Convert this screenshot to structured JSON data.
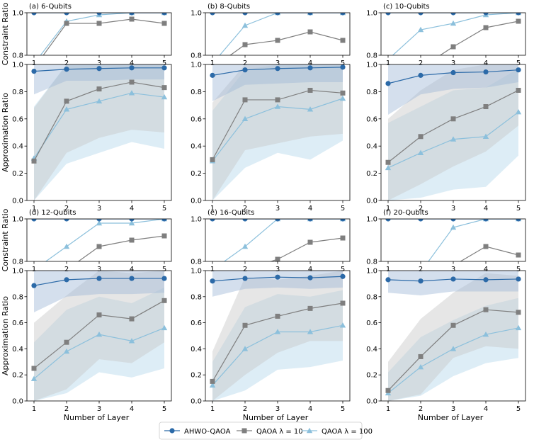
{
  "colors": {
    "ahwo": "#2c6aa8",
    "qaoa10": "#7f7f7f",
    "qaoa100": "#8cc0dc",
    "ahwo_band": "#9fb8d6",
    "qaoa10_band": "#c8c8c8",
    "qaoa100_band": "#b3d6ea"
  },
  "labels": {
    "constraint_ylabel": "Constraint Ratio",
    "approx_ylabel": "Approximation Ratio",
    "xlabel": "Number of Layer"
  },
  "legend": {
    "ahwo": "AHWO-QAOA",
    "qaoa10": "QAOA λ = 10",
    "qaoa100": "QAOA λ = 100"
  },
  "chart_data": {
    "type": "line",
    "x": [
      1,
      2,
      3,
      4,
      5
    ],
    "xticks": [
      "1",
      "2",
      "3",
      "4",
      "5"
    ],
    "constraint_ylim": [
      0.8,
      1.0
    ],
    "constraint_yticks": [
      "0.8",
      "1.0"
    ],
    "approx_ylim": [
      0.0,
      1.0
    ],
    "approx_yticks": [
      "0.0",
      "0.2",
      "0.4",
      "0.6",
      "0.8",
      "1.0"
    ],
    "panels": [
      {
        "title": "(a)  6-Qubits",
        "constraint": {
          "ahwo": [
            1.0,
            1.0,
            1.0,
            1.0,
            1.0
          ],
          "qaoa10": [
            0.74,
            0.95,
            0.95,
            0.97,
            0.95
          ],
          "qaoa100": [
            0.76,
            0.96,
            0.99,
            1.0,
            1.0
          ]
        },
        "approx": {
          "ahwo": [
            0.95,
            0.965,
            0.97,
            0.975,
            0.975
          ],
          "ahwo_band": [
            [
              0.78,
              1.0
            ],
            [
              0.88,
              1.0
            ],
            [
              0.88,
              1.0
            ],
            [
              0.89,
              1.0
            ],
            [
              0.89,
              1.0
            ]
          ],
          "qaoa10": [
            0.29,
            0.73,
            0.82,
            0.87,
            0.83
          ],
          "qaoa10_band": [
            [
              0.0,
              0.68
            ],
            [
              0.35,
              1.0
            ],
            [
              0.46,
              1.0
            ],
            [
              0.52,
              1.0
            ],
            [
              0.5,
              1.0
            ]
          ],
          "qaoa100": [
            0.31,
            0.67,
            0.73,
            0.79,
            0.76
          ],
          "qaoa100_band": [
            [
              0.0,
              0.69
            ],
            [
              0.27,
              1.0
            ],
            [
              0.35,
              1.0
            ],
            [
              0.43,
              1.0
            ],
            [
              0.38,
              1.0
            ]
          ]
        }
      },
      {
        "title": "(b)  8-Qubits",
        "constraint": {
          "ahwo": [
            1.0,
            1.0,
            1.0,
            1.0,
            1.0
          ],
          "qaoa10": [
            0.74,
            0.85,
            0.87,
            0.91,
            0.87
          ],
          "qaoa100": [
            0.76,
            0.94,
            1.0,
            1.0,
            1.0
          ]
        },
        "approx": {
          "ahwo": [
            0.92,
            0.96,
            0.97,
            0.975,
            0.98
          ],
          "ahwo_band": [
            [
              0.73,
              1.0
            ],
            [
              0.85,
              1.0
            ],
            [
              0.86,
              1.0
            ],
            [
              0.87,
              1.0
            ],
            [
              0.87,
              1.0
            ]
          ],
          "qaoa10": [
            0.3,
            0.74,
            0.74,
            0.81,
            0.79
          ],
          "qaoa10_band": [
            [
              0.0,
              0.72
            ],
            [
              0.37,
              1.0
            ],
            [
              0.42,
              1.0
            ],
            [
              0.47,
              1.0
            ],
            [
              0.49,
              1.0
            ]
          ],
          "qaoa100": [
            0.29,
            0.6,
            0.69,
            0.67,
            0.75
          ],
          "qaoa100_band": [
            [
              0.0,
              0.66
            ],
            [
              0.24,
              0.96
            ],
            [
              0.35,
              1.0
            ],
            [
              0.3,
              1.0
            ],
            [
              0.44,
              1.0
            ]
          ]
        }
      },
      {
        "title": "(c)  10-Qubits",
        "constraint": {
          "ahwo": [
            1.0,
            1.0,
            1.0,
            1.0,
            1.0
          ],
          "qaoa10": [
            0.7,
            0.74,
            0.84,
            0.93,
            0.96
          ],
          "qaoa100": [
            0.78,
            0.92,
            0.95,
            0.99,
            1.0
          ]
        },
        "approx": {
          "ahwo": [
            0.86,
            0.92,
            0.94,
            0.945,
            0.96
          ],
          "ahwo_band": [
            [
              0.63,
              1.0
            ],
            [
              0.78,
              1.0
            ],
            [
              0.82,
              1.0
            ],
            [
              0.83,
              1.0
            ],
            [
              0.87,
              1.0
            ]
          ],
          "qaoa10": [
            0.28,
            0.47,
            0.6,
            0.69,
            0.81
          ],
          "qaoa10_band": [
            [
              0.0,
              0.6
            ],
            [
              0.12,
              0.81
            ],
            [
              0.25,
              0.96
            ],
            [
              0.36,
              1.0
            ],
            [
              0.55,
              1.0
            ]
          ],
          "qaoa100": [
            0.24,
            0.35,
            0.45,
            0.47,
            0.65
          ],
          "qaoa100_band": [
            [
              0.0,
              0.57
            ],
            [
              0.02,
              0.69
            ],
            [
              0.08,
              0.81
            ],
            [
              0.1,
              0.83
            ],
            [
              0.33,
              0.97
            ]
          ]
        }
      },
      {
        "title": "(d)  12-Qubits",
        "constraint": {
          "ahwo": [
            1.0,
            1.0,
            1.0,
            1.0,
            1.0
          ],
          "qaoa10": [
            0.72,
            0.76,
            0.87,
            0.9,
            0.92
          ],
          "qaoa100": [
            0.76,
            0.87,
            0.98,
            0.98,
            1.0
          ]
        },
        "approx": {
          "ahwo": [
            0.885,
            0.93,
            0.94,
            0.94,
            0.94
          ],
          "ahwo_band": [
            [
              0.68,
              1.0
            ],
            [
              0.8,
              1.0
            ],
            [
              0.82,
              1.0
            ],
            [
              0.82,
              1.0
            ],
            [
              0.83,
              1.0
            ]
          ],
          "qaoa10": [
            0.25,
            0.45,
            0.66,
            0.63,
            0.77
          ],
          "qaoa10_band": [
            [
              0.0,
              0.6
            ],
            [
              0.09,
              0.81
            ],
            [
              0.32,
              1.0
            ],
            [
              0.29,
              0.98
            ],
            [
              0.45,
              1.0
            ]
          ],
          "qaoa100": [
            0.17,
            0.38,
            0.51,
            0.46,
            0.56
          ],
          "qaoa100_band": [
            [
              0.0,
              0.45
            ],
            [
              0.06,
              0.7
            ],
            [
              0.22,
              0.8
            ],
            [
              0.18,
              0.75
            ],
            [
              0.25,
              0.87
            ]
          ]
        }
      },
      {
        "title": "(e)  16-Qubits",
        "constraint": {
          "ahwo": [
            1.0,
            1.0,
            1.0,
            1.0,
            1.0
          ],
          "qaoa10": [
            0.7,
            0.76,
            0.81,
            0.89,
            0.91
          ],
          "qaoa100": [
            0.76,
            0.87,
            1.0,
            1.0,
            1.0
          ]
        },
        "approx": {
          "ahwo": [
            0.92,
            0.94,
            0.95,
            0.945,
            0.955
          ],
          "ahwo_band": [
            [
              0.8,
              1.0
            ],
            [
              0.86,
              1.0
            ],
            [
              0.87,
              1.0
            ],
            [
              0.86,
              1.0
            ],
            [
              0.87,
              1.0
            ]
          ],
          "qaoa10": [
            0.15,
            0.58,
            0.65,
            0.71,
            0.75
          ],
          "qaoa10_band": [
            [
              0.0,
              0.38
            ],
            [
              0.2,
              0.95
            ],
            [
              0.37,
              0.93
            ],
            [
              0.46,
              0.96
            ],
            [
              0.46,
              1.0
            ]
          ],
          "qaoa100": [
            0.12,
            0.4,
            0.53,
            0.53,
            0.58
          ],
          "qaoa100_band": [
            [
              0.0,
              0.3
            ],
            [
              0.08,
              0.72
            ],
            [
              0.24,
              0.82
            ],
            [
              0.26,
              0.8
            ],
            [
              0.31,
              0.85
            ]
          ]
        }
      },
      {
        "title": "(f)  20-Qubits",
        "constraint": {
          "ahwo": [
            1.0,
            1.0,
            1.0,
            1.0,
            1.0
          ],
          "qaoa10": [
            0.7,
            0.72,
            0.78,
            0.87,
            0.83
          ],
          "qaoa100": [
            0.72,
            0.75,
            0.96,
            1.0,
            1.0
          ]
        },
        "approx": {
          "ahwo": [
            0.93,
            0.92,
            0.935,
            0.93,
            0.935
          ],
          "ahwo_band": [
            [
              0.83,
              1.0
            ],
            [
              0.81,
              1.0
            ],
            [
              0.84,
              1.0
            ],
            [
              0.84,
              1.0
            ],
            [
              0.84,
              1.0
            ]
          ],
          "qaoa10": [
            0.08,
            0.34,
            0.58,
            0.7,
            0.68
          ],
          "qaoa10_band": [
            [
              0.0,
              0.3
            ],
            [
              0.05,
              0.63
            ],
            [
              0.33,
              0.83
            ],
            [
              0.42,
              0.98
            ],
            [
              0.4,
              0.96
            ]
          ],
          "qaoa100": [
            0.06,
            0.26,
            0.4,
            0.51,
            0.56
          ],
          "qaoa100_band": [
            [
              0.0,
              0.22
            ],
            [
              0.04,
              0.49
            ],
            [
              0.19,
              0.62
            ],
            [
              0.29,
              0.73
            ],
            [
              0.33,
              0.79
            ]
          ]
        }
      }
    ]
  }
}
